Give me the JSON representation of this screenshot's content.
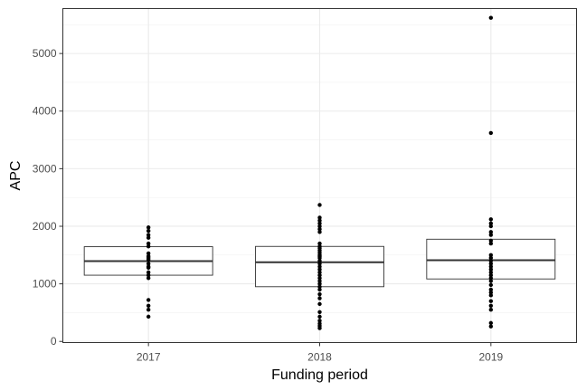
{
  "chart_data": {
    "type": "box",
    "xlabel": "Funding period",
    "ylabel": "APC",
    "categories": [
      "2017",
      "2018",
      "2019"
    ],
    "ylim": [
      -20,
      5780
    ],
    "y_ticks": [
      0,
      1000,
      2000,
      3000,
      4000,
      5000
    ],
    "y_tick_labels": [
      "0",
      "1000",
      "2000",
      "3000",
      "4000",
      "5000"
    ],
    "grid": true,
    "theme": "bw",
    "boxes": [
      {
        "category": "2017",
        "q1": 1150,
        "median": 1395,
        "q3": 1645
      },
      {
        "category": "2018",
        "q1": 950,
        "median": 1375,
        "q3": 1650
      },
      {
        "category": "2019",
        "q1": 1085,
        "median": 1410,
        "q3": 1775
      }
    ],
    "points": [
      {
        "category": "2017",
        "values": [
          430,
          550,
          620,
          720,
          1100,
          1150,
          1200,
          1280,
          1300,
          1350,
          1420,
          1450,
          1480,
          1530,
          1650,
          1700,
          1800,
          1850,
          1920,
          1980
        ]
      },
      {
        "category": "2018",
        "values": [
          230,
          270,
          310,
          360,
          430,
          510,
          650,
          750,
          820,
          900,
          950,
          1000,
          1050,
          1100,
          1150,
          1200,
          1250,
          1300,
          1350,
          1400,
          1450,
          1480,
          1500,
          1540,
          1580,
          1620,
          1650,
          1700,
          1900,
          1950,
          2000,
          2050,
          2100,
          2150,
          2370
        ]
      },
      {
        "category": "2019",
        "values": [
          260,
          320,
          550,
          620,
          700,
          800,
          850,
          900,
          980,
          1050,
          1100,
          1150,
          1200,
          1250,
          1300,
          1350,
          1400,
          1450,
          1500,
          1700,
          1750,
          1850,
          1900,
          2000,
          2050,
          2120,
          3620,
          5620
        ]
      }
    ]
  }
}
